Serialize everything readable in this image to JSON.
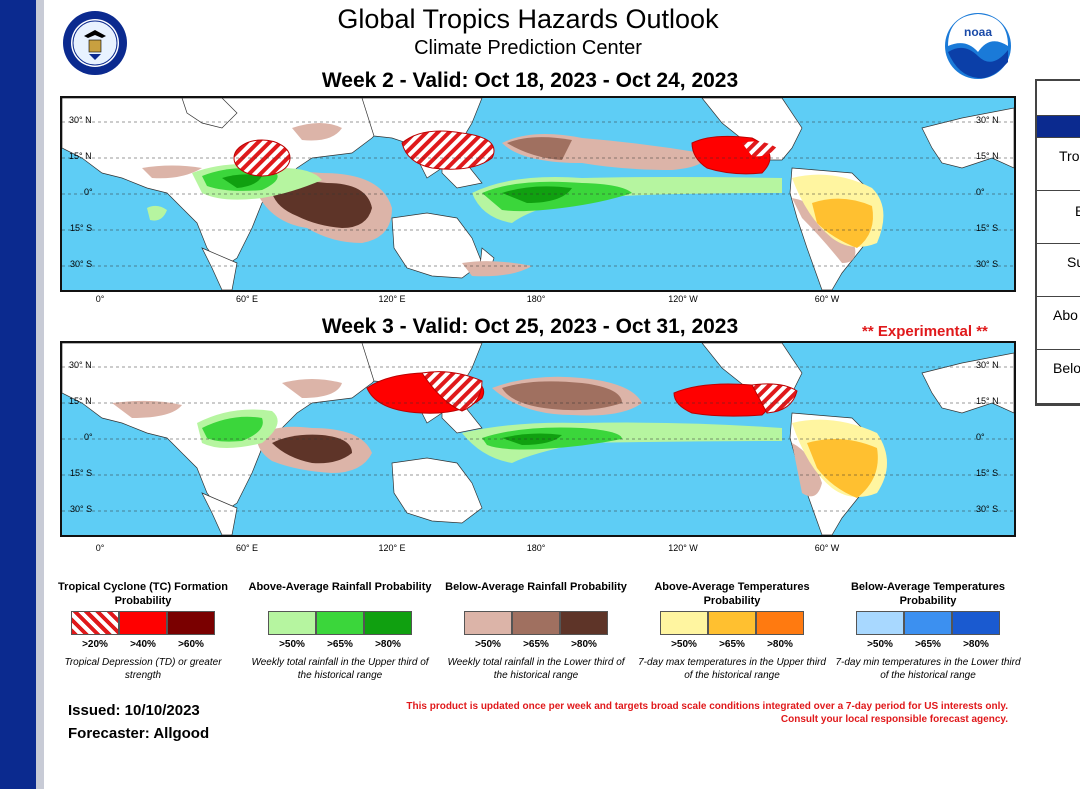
{
  "header": {
    "title": "Global Tropics Hazards Outlook",
    "subtitle": "Climate Prediction Center",
    "week2": "Week 2 - Valid: Oct 18, 2023 - Oct 24, 2023",
    "week3": "Week 3 - Valid: Oct 25, 2023 - Oct 31, 2023",
    "experimental": "** Experimental **",
    "noaa_logo_text": "noaa"
  },
  "map": {
    "lat_left": [
      "30° N",
      "15° N",
      "0°",
      "15° S",
      "30° S"
    ],
    "lat_right": [
      "30° N",
      "15° N",
      "0°",
      "15° S",
      "30° S"
    ],
    "lon": [
      "0°",
      "60° E",
      "120° E",
      "180°",
      "120° W",
      "60° W"
    ]
  },
  "legend": [
    {
      "title": "Tropical Cyclone (TC) Formation Probability",
      "colors": [
        "#e0191b",
        "#ff0000",
        "#7a0000"
      ],
      "thresholds": [
        ">20%",
        ">40%",
        ">60%"
      ],
      "desc": "Tropical Depression (TD) or greater strength"
    },
    {
      "title": "Above-Average Rainfall Probability",
      "colors": [
        "#b6f5a0",
        "#3bd63b",
        "#10a010"
      ],
      "thresholds": [
        ">50%",
        ">65%",
        ">80%"
      ],
      "desc": "Weekly total rainfall in the Upper third of the historical range"
    },
    {
      "title": "Below-Average Rainfall Probability",
      "colors": [
        "#dcb4a8",
        "#a07060",
        "#5e3428"
      ],
      "thresholds": [
        ">50%",
        ">65%",
        ">80%"
      ],
      "desc": "Weekly total rainfall in the Lower third of the historical range"
    },
    {
      "title": "Above-Average Temperatures Probability",
      "colors": [
        "#fff5a0",
        "#ffc030",
        "#ff7a10"
      ],
      "thresholds": [
        ">50%",
        ">65%",
        ">80%"
      ],
      "desc": "7-day max temperatures in the Upper third of the historical range"
    },
    {
      "title": "Below-Average Temperatures Probability",
      "colors": [
        "#a8d8ff",
        "#3c90f0",
        "#1a5ad0"
      ],
      "thresholds": [
        ">50%",
        ">65%",
        ">80%"
      ],
      "desc": "7-day min temperatures in the Lower third of the historical range"
    }
  ],
  "footer": {
    "issued": "Issued: 10/10/2023",
    "forecaster": "Forecaster: Allgood",
    "notice_line1": "This product is updated once per week and targets broad scale conditions integrated over a 7-day period for US interests only.",
    "notice_line2": "Consult your local responsible forecast agency."
  },
  "side_panel": {
    "rows": [
      "",
      "",
      "Tro",
      "B",
      "Su",
      "Abo",
      "Belo"
    ]
  },
  "colors": {
    "ocean": "#5ecdf5",
    "land": "#ffffff",
    "leftbar": "#0b2a8f",
    "accent_red": "#e0191b"
  }
}
